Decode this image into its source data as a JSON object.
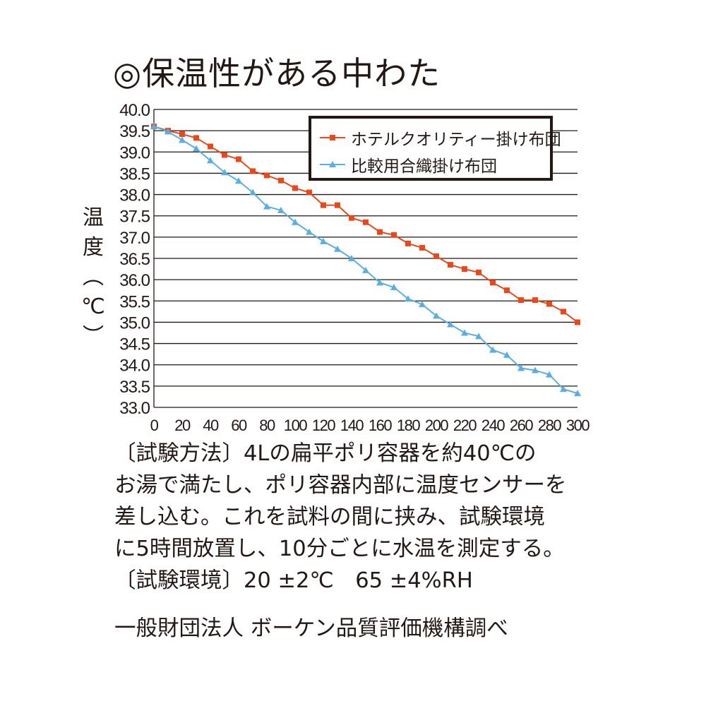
{
  "title": "◎保温性がある中わた",
  "chart_data": {
    "type": "line",
    "ylabel_chars": [
      "温",
      "度",
      "︵",
      "℃",
      "︶"
    ],
    "ylim": [
      33.0,
      40.0
    ],
    "xlim": [
      0,
      300
    ],
    "yticks": [
      "40.0",
      "39.5",
      "39.0",
      "38.5",
      "38.0",
      "37.5",
      "37.0",
      "36.5",
      "36.0",
      "35.5",
      "35.0",
      "34.5",
      "34.0",
      "33.5",
      "33.0"
    ],
    "xticks": [
      "0",
      "20",
      "40",
      "60",
      "80",
      "100",
      "120",
      "140",
      "160",
      "180",
      "200",
      "220",
      "240",
      "260",
      "280",
      "300"
    ],
    "grid": "horizontal",
    "legend_position": "top-right",
    "x": [
      0,
      10,
      20,
      30,
      40,
      50,
      60,
      70,
      80,
      90,
      100,
      110,
      120,
      130,
      140,
      150,
      160,
      170,
      180,
      190,
      200,
      210,
      220,
      230,
      240,
      250,
      260,
      270,
      280,
      290,
      300
    ],
    "series": [
      {
        "name": "ホテルクオリティー掛け布団",
        "color": "#e8481c",
        "marker": "square",
        "values": [
          39.6,
          39.5,
          39.42,
          39.33,
          39.13,
          38.93,
          38.83,
          38.55,
          38.45,
          38.33,
          38.15,
          38.05,
          37.75,
          37.75,
          37.45,
          37.35,
          37.12,
          37.05,
          36.85,
          36.75,
          36.55,
          36.35,
          36.25,
          36.17,
          35.93,
          35.75,
          35.52,
          35.52,
          35.43,
          35.25,
          35.0
        ]
      },
      {
        "name": "比較用合織掛け布団",
        "color": "#5aaee0",
        "marker": "triangle",
        "values": [
          39.6,
          39.48,
          39.28,
          39.08,
          38.8,
          38.52,
          38.32,
          38.05,
          37.72,
          37.63,
          37.35,
          37.12,
          36.9,
          36.72,
          36.5,
          36.22,
          35.93,
          35.82,
          35.55,
          35.42,
          35.15,
          34.95,
          34.75,
          34.67,
          34.35,
          34.23,
          33.92,
          33.87,
          33.77,
          33.43,
          33.33
        ]
      }
    ]
  },
  "description": [
    "〔試験方法〕4Lの扁平ポリ容器を約40℃の",
    "お湯で満たし、ポリ容器内部に温度センサーを",
    "差し込む。これを試料の間に挟み、試験環境",
    "に5時間放置し、10分ごとに水温を測定する。",
    "〔試験環境〕20 ±2℃　65 ±4%RH"
  ],
  "source": "一般財団法人 ボーケン品質評価機構調べ"
}
